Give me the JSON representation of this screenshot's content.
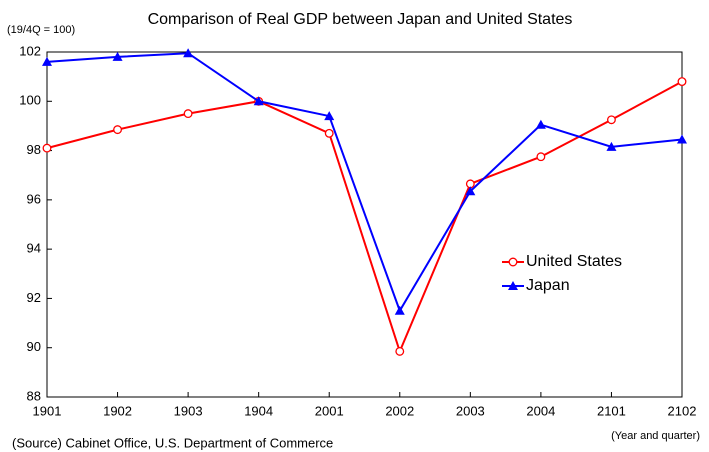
{
  "chart_data": {
    "type": "line",
    "title": "Comparison of Real GDP between Japan and United States",
    "y_unit_label": "(19/4Q = 100)",
    "x_unit_label": "(Year and quarter)",
    "source": "(Source) Cabinet Office, U.S. Department of Commerce",
    "categories": [
      "1901",
      "1902",
      "1903",
      "1904",
      "2001",
      "2002",
      "2003",
      "2004",
      "2101",
      "2102"
    ],
    "series": [
      {
        "name": "United States",
        "color": "#ff0000",
        "marker": "circle",
        "values": [
          98.1,
          98.85,
          99.5,
          100.0,
          98.7,
          89.85,
          96.65,
          97.75,
          99.25,
          100.8
        ]
      },
      {
        "name": "Japan",
        "color": "#0000ff",
        "marker": "triangle",
        "values": [
          101.6,
          101.8,
          101.95,
          100.0,
          99.4,
          91.5,
          96.35,
          99.05,
          98.15,
          98.45
        ]
      }
    ],
    "ylim": [
      88,
      102
    ],
    "yticks": [
      88,
      90,
      92,
      94,
      96,
      98,
      100,
      102
    ],
    "grid": false
  }
}
